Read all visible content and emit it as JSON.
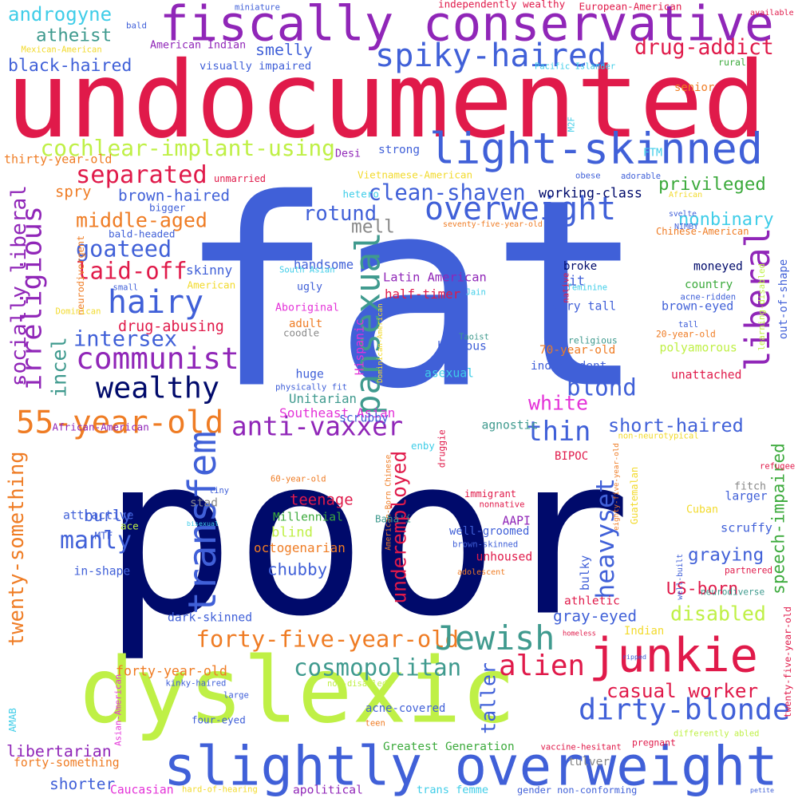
{
  "colors": {
    "navy": "#000a6b",
    "blue": "#4060d8",
    "red": "#e01a4a",
    "purple": "#9026b8",
    "lime": "#bff046",
    "teal": "#3f9a8e",
    "orange": "#ef7c24",
    "green": "#3caa3c",
    "cyan": "#3fcde8",
    "yellow": "#f2da2c",
    "magenta": "#e432d8",
    "gray": "#8a8a8a"
  },
  "words": [
    {
      "text": "fat",
      "color": "blue"
    },
    {
      "text": "poor",
      "color": "navy"
    },
    {
      "text": "undocumented",
      "color": "red"
    },
    {
      "text": "dyslexic",
      "color": "lime"
    },
    {
      "text": "slightly overweight",
      "color": "blue"
    },
    {
      "text": "fiscally conservative",
      "color": "purple"
    },
    {
      "text": "junkie",
      "color": "red"
    },
    {
      "text": "light-skinned",
      "color": "blue"
    },
    {
      "text": "forty-five-year-old",
      "color": "orange"
    },
    {
      "text": "spiky-haired",
      "color": "blue"
    },
    {
      "text": "separated",
      "color": "red"
    },
    {
      "text": "overweight",
      "color": "blue"
    },
    {
      "text": "communist",
      "color": "purple"
    },
    {
      "text": "wealthy",
      "color": "navy"
    },
    {
      "text": "anti-vaxxer",
      "color": "purple"
    },
    {
      "text": "55-year-old",
      "color": "orange"
    },
    {
      "text": "irreligious",
      "color": "purple"
    },
    {
      "text": "dirty-blonde",
      "color": "blue"
    },
    {
      "text": "pansexual",
      "color": "teal"
    },
    {
      "text": "transfem",
      "color": "blue"
    },
    {
      "text": "liberal",
      "color": "purple"
    },
    {
      "text": "hairy",
      "color": "blue"
    },
    {
      "text": "Jewish",
      "color": "teal"
    },
    {
      "text": "alien",
      "color": "red"
    },
    {
      "text": "cochlear-implant-using",
      "color": "lime"
    },
    {
      "text": "drug-addict",
      "color": "red"
    },
    {
      "text": "black-haired",
      "color": "blue"
    },
    {
      "text": "androgyne",
      "color": "cyan"
    },
    {
      "text": "atheist",
      "color": "teal"
    },
    {
      "text": "smelly",
      "color": "blue"
    },
    {
      "text": "middle-aged",
      "color": "orange"
    },
    {
      "text": "goateed",
      "color": "blue"
    },
    {
      "text": "laid-off",
      "color": "red"
    },
    {
      "text": "intersex",
      "color": "blue"
    },
    {
      "text": "socially liberal",
      "color": "purple"
    },
    {
      "text": "clean-shaven",
      "color": "blue"
    },
    {
      "text": "privileged",
      "color": "green"
    },
    {
      "text": "nonbinary",
      "color": "cyan"
    },
    {
      "text": "rotund",
      "color": "blue"
    },
    {
      "text": "mell",
      "color": "gray"
    },
    {
      "text": "blond",
      "color": "blue"
    },
    {
      "text": "white",
      "color": "magenta"
    },
    {
      "text": "thin",
      "color": "blue"
    },
    {
      "text": "short-haired",
      "color": "blue"
    },
    {
      "text": "speech-impaired",
      "color": "green"
    },
    {
      "text": "underemployed",
      "color": "red"
    },
    {
      "text": "heavyset",
      "color": "blue"
    },
    {
      "text": "blind",
      "color": "lime"
    },
    {
      "text": "manly",
      "color": "blue"
    },
    {
      "text": "twenty-something",
      "color": "orange"
    },
    {
      "text": "graying",
      "color": "blue"
    },
    {
      "text": "US-born",
      "color": "red"
    },
    {
      "text": "cosmopolitan",
      "color": "teal"
    },
    {
      "text": "casual worker",
      "color": "red"
    },
    {
      "text": "disabled",
      "color": "lime"
    },
    {
      "text": "taller",
      "color": "blue"
    },
    {
      "text": "shorter",
      "color": "blue"
    },
    {
      "text": "libertarian",
      "color": "purple"
    },
    {
      "text": "incel",
      "color": "teal"
    },
    {
      "text": "very tall",
      "color": "blue"
    },
    {
      "text": "brown-haired",
      "color": "blue"
    },
    {
      "text": "thirty-year-old",
      "color": "orange"
    },
    {
      "text": "spry",
      "color": "orange"
    },
    {
      "text": "drug-abusing",
      "color": "red"
    },
    {
      "text": "chubby",
      "color": "blue"
    },
    {
      "text": "burly",
      "color": "blue"
    },
    {
      "text": "skinny",
      "color": "blue"
    },
    {
      "text": "bisexual",
      "color": "cyan"
    },
    {
      "text": "teenage",
      "color": "red"
    },
    {
      "text": "Millennial",
      "color": "green"
    },
    {
      "text": "octogenarian",
      "color": "orange"
    },
    {
      "text": "athletic",
      "color": "red"
    },
    {
      "text": "gray-eyed",
      "color": "blue"
    },
    {
      "text": "forty-year-old",
      "color": "orange"
    },
    {
      "text": "handsome",
      "color": "blue"
    },
    {
      "text": "half-timer",
      "color": "red"
    },
    {
      "text": "Latin American",
      "color": "purple"
    },
    {
      "text": "ugly",
      "color": "blue"
    },
    {
      "text": "adult",
      "color": "orange"
    },
    {
      "text": "Aboriginal",
      "color": "magenta"
    },
    {
      "text": "coodle",
      "color": "gray"
    },
    {
      "text": "huge",
      "color": "blue"
    },
    {
      "text": "Unitarian",
      "color": "teal"
    },
    {
      "text": "Southeast Asian",
      "color": "magenta"
    },
    {
      "text": "agnostic",
      "color": "teal"
    },
    {
      "text": "scrubby",
      "color": "blue"
    },
    {
      "text": "enby",
      "color": "cyan"
    },
    {
      "text": "druggie",
      "color": "red"
    },
    {
      "text": "BIPOC",
      "color": "red"
    },
    {
      "text": "immigrant",
      "color": "red"
    },
    {
      "text": "AAPI",
      "color": "purple"
    },
    {
      "text": "well-groomed",
      "color": "blue"
    },
    {
      "text": "unhoused",
      "color": "red"
    },
    {
      "text": "acne-covered",
      "color": "blue"
    },
    {
      "text": "Greatest Generation",
      "color": "green"
    },
    {
      "text": "apolitical",
      "color": "purple"
    },
    {
      "text": "trans femme",
      "color": "cyan"
    },
    {
      "text": "gender non-conforming",
      "color": "blue"
    },
    {
      "text": "hard-of-hearing",
      "color": "yellow"
    },
    {
      "text": "Caucasian",
      "color": "magenta"
    },
    {
      "text": "forty-something",
      "color": "orange"
    },
    {
      "text": "African-American",
      "color": "purple"
    },
    {
      "text": "physically fit",
      "color": "blue"
    },
    {
      "text": "asexual",
      "color": "cyan"
    },
    {
      "text": "Hispanic",
      "color": "magenta"
    },
    {
      "text": "Dominican-American",
      "color": "yellow"
    },
    {
      "text": "American-Born Chinese",
      "color": "orange"
    },
    {
      "text": "hideous",
      "color": "blue"
    },
    {
      "text": "independent",
      "color": "blue"
    },
    {
      "text": "70-year-old",
      "color": "orange"
    },
    {
      "text": "polyamorous",
      "color": "lime"
    },
    {
      "text": "20-year-old",
      "color": "orange"
    },
    {
      "text": "religious",
      "color": "teal"
    },
    {
      "text": "unattached",
      "color": "red"
    },
    {
      "text": "brown-eyed",
      "color": "blue"
    },
    {
      "text": "country",
      "color": "green"
    },
    {
      "text": "moneyed",
      "color": "navy"
    },
    {
      "text": "broke",
      "color": "navy"
    },
    {
      "text": "fit",
      "color": "blue"
    },
    {
      "text": "feminine",
      "color": "cyan"
    },
    {
      "text": "working-class",
      "color": "navy"
    },
    {
      "text": "strong",
      "color": "blue"
    },
    {
      "text": "Desi",
      "color": "purple"
    },
    {
      "text": "unmarried",
      "color": "red"
    },
    {
      "text": "hetero",
      "color": "cyan"
    },
    {
      "text": "Vietnamese-American",
      "color": "yellow"
    },
    {
      "text": "bigger",
      "color": "blue"
    },
    {
      "text": "bald-headed",
      "color": "blue"
    },
    {
      "text": "neurodivergent",
      "color": "orange"
    },
    {
      "text": "South Asian",
      "color": "cyan"
    },
    {
      "text": "small",
      "color": "blue"
    },
    {
      "text": "American",
      "color": "yellow"
    },
    {
      "text": "Dominican",
      "color": "yellow"
    },
    {
      "text": "visually impaired",
      "color": "blue"
    },
    {
      "text": "American Indian",
      "color": "purple"
    },
    {
      "text": "Mexican-American",
      "color": "yellow"
    },
    {
      "text": "MTF",
      "color": "blue"
    },
    {
      "text": "M2F",
      "color": "cyan"
    },
    {
      "text": "FTM",
      "color": "cyan"
    },
    {
      "text": "bald",
      "color": "blue"
    },
    {
      "text": "miniature",
      "color": "blue"
    },
    {
      "text": "independently wealthy",
      "color": "red"
    },
    {
      "text": "European-American",
      "color": "red"
    },
    {
      "text": "available",
      "color": "red"
    },
    {
      "text": "Pacific Islander",
      "color": "cyan"
    },
    {
      "text": "senior",
      "color": "orange"
    },
    {
      "text": "rural",
      "color": "green"
    },
    {
      "text": "obese",
      "color": "blue"
    },
    {
      "text": "adorable",
      "color": "blue"
    },
    {
      "text": "African",
      "color": "yellow"
    },
    {
      "text": "seventy-five-year-old",
      "color": "orange"
    },
    {
      "text": "svelte",
      "color": "blue"
    },
    {
      "text": "NIMBY",
      "color": "blue"
    },
    {
      "text": "Chinese-American",
      "color": "orange"
    },
    {
      "text": "native",
      "color": "red"
    },
    {
      "text": "Jain",
      "color": "cyan"
    },
    {
      "text": "acne-ridden",
      "color": "blue"
    },
    {
      "text": "learning-disabled",
      "color": "lime"
    },
    {
      "text": "out-of-shape",
      "color": "blue"
    },
    {
      "text": "tall",
      "color": "blue"
    },
    {
      "text": "Taoist",
      "color": "teal"
    },
    {
      "text": "eighty-five-year-old",
      "color": "orange"
    },
    {
      "text": "Guatemalan",
      "color": "yellow"
    },
    {
      "text": "non-neurotypical",
      "color": "yellow"
    },
    {
      "text": "Cuban",
      "color": "yellow"
    },
    {
      "text": "fitch",
      "color": "gray"
    },
    {
      "text": "larger",
      "color": "blue"
    },
    {
      "text": "scruffy",
      "color": "blue"
    },
    {
      "text": "nonnative",
      "color": "red"
    },
    {
      "text": "brown-skinned",
      "color": "blue"
    },
    {
      "text": "adolescent",
      "color": "orange"
    },
    {
      "text": "bulky",
      "color": "blue"
    },
    {
      "text": "well-built",
      "color": "blue"
    },
    {
      "text": "partnered",
      "color": "red"
    },
    {
      "text": "neurodiverse",
      "color": "teal"
    },
    {
      "text": "refugee",
      "color": "red"
    },
    {
      "text": "twenty-five-year-old",
      "color": "red"
    },
    {
      "text": "Indian",
      "color": "yellow"
    },
    {
      "text": "homeless",
      "color": "red"
    },
    {
      "text": "non-disabled",
      "color": "lime"
    },
    {
      "text": "ripped",
      "color": "blue"
    },
    {
      "text": "differently abled",
      "color": "lime"
    },
    {
      "text": "pregnant",
      "color": "red"
    },
    {
      "text": "petite",
      "color": "blue"
    },
    {
      "text": "vaccine-hesitant",
      "color": "red"
    },
    {
      "text": "tulver",
      "color": "gray"
    },
    {
      "text": "teen",
      "color": "orange"
    },
    {
      "text": "four-eyed",
      "color": "blue"
    },
    {
      "text": "large",
      "color": "blue"
    },
    {
      "text": "kinky-haired",
      "color": "blue"
    },
    {
      "text": "Asian-American",
      "color": "magenta"
    },
    {
      "text": "AMAB",
      "color": "cyan"
    },
    {
      "text": "dark-skinned",
      "color": "blue"
    },
    {
      "text": "in-shape",
      "color": "blue"
    },
    {
      "text": "attractive",
      "color": "blue"
    },
    {
      "text": "ace",
      "color": "lime"
    },
    {
      "text": "stad",
      "color": "gray"
    },
    {
      "text": "60-year-old",
      "color": "orange"
    },
    {
      "text": "tiny",
      "color": "blue"
    },
    {
      "text": "Bahá'í",
      "color": "teal"
    }
  ]
}
